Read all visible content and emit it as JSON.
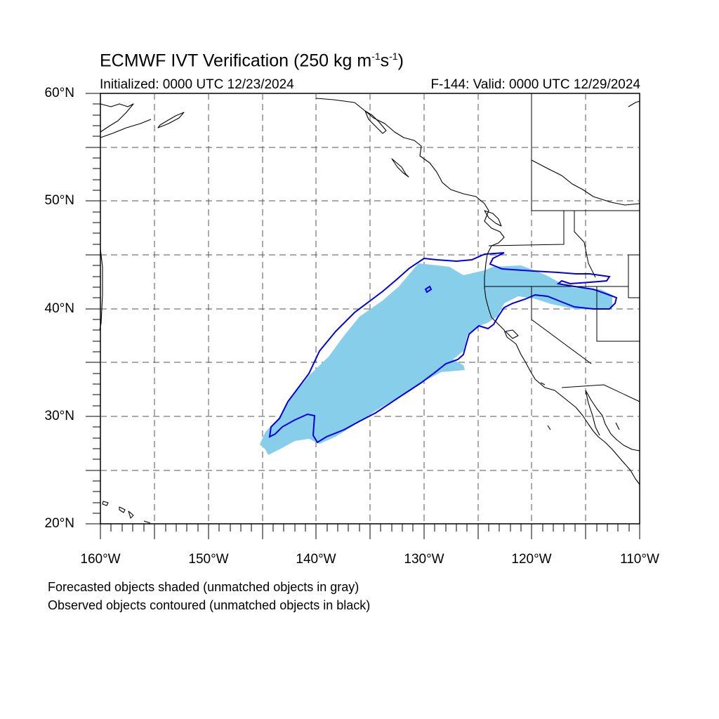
{
  "title": {
    "main": "ECMWF IVT Verification (250 kg m",
    "sup1": "-1",
    "mid": "s",
    "sup2": "-1",
    "end": ")"
  },
  "init_label": "Initialized: 0000 UTC 12/23/2024",
  "valid_label": "F-144: Valid: 0000 UTC 12/29/2024",
  "lat_labels": [
    "60°N",
    "50°N",
    "40°N",
    "30°N",
    "20°N"
  ],
  "lon_labels": [
    "160°W",
    "150°W",
    "140°W",
    "130°W",
    "120°W",
    "110°W"
  ],
  "notes": [
    "Forecasted objects shaded (unmatched objects in gray)",
    "Observed objects contoured (unmatched objects in black)"
  ],
  "colors": {
    "forecast_fill": "#87ceeb",
    "observed_contour": "#0000e6",
    "coastline": "#000000",
    "grid": "#555555"
  }
}
